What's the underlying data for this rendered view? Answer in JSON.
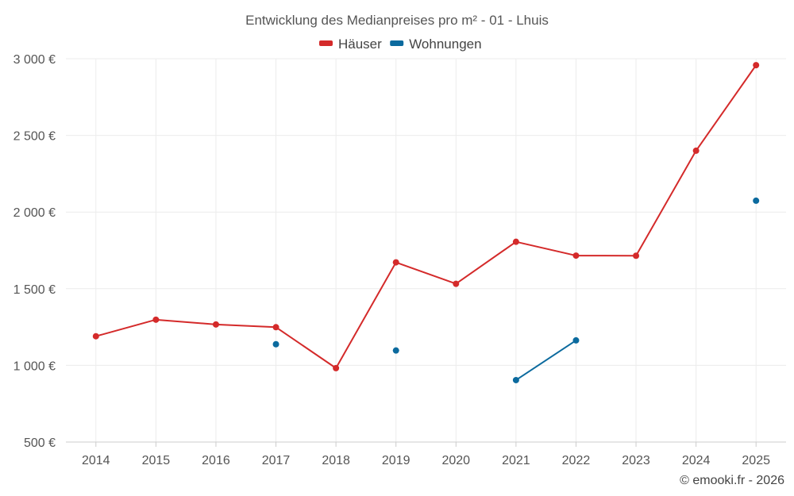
{
  "chart_data": {
    "type": "line",
    "title": "Entwicklung des Medianpreises pro m² - 01 - Lhuis",
    "categories": [
      "2014",
      "2015",
      "2016",
      "2017",
      "2018",
      "2019",
      "2020",
      "2021",
      "2022",
      "2023",
      "2024",
      "2025"
    ],
    "series": [
      {
        "name": "Häuser",
        "color": "#d42a2a",
        "values": [
          1190,
          1298,
          1267,
          1249,
          982,
          1672,
          1532,
          1806,
          1716,
          1715,
          2400,
          2958
        ]
      },
      {
        "name": "Wohnungen",
        "color": "#0b6a9e",
        "values": [
          null,
          null,
          null,
          1138,
          null,
          1097,
          null,
          904,
          1163,
          null,
          null,
          2074
        ]
      }
    ],
    "ylim": [
      500,
      3000
    ],
    "yticks": [
      500,
      1000,
      1500,
      2000,
      2500,
      3000
    ],
    "ytick_labels": [
      "500 €",
      "1 000 €",
      "1 500 €",
      "2 000 €",
      "2 500 €",
      "3 000 €"
    ],
    "xlabel": "",
    "ylabel": "",
    "grid": true,
    "legend_position": "top-center"
  },
  "credit": "© emooki.fr - 2026"
}
